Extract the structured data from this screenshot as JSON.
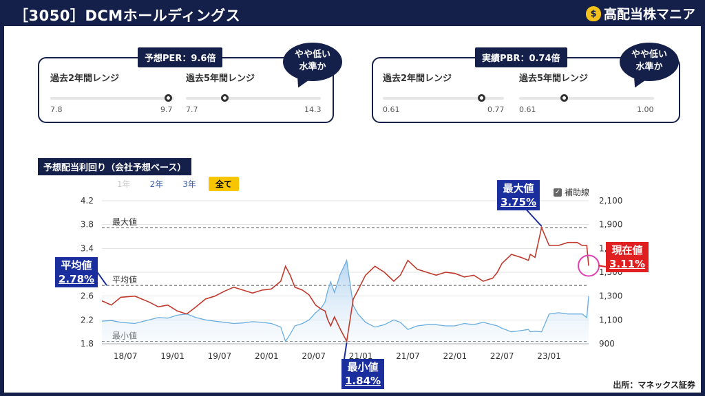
{
  "header": {
    "title": "［3050］DCMホールディングス",
    "logo_icon": "money-bag-icon",
    "logo_icon_glyph": "$",
    "logo_text": "高配当株マニア"
  },
  "per_panel": {
    "title": "予想PER：9.6倍",
    "bubble": [
      "やや低い",
      "水準か"
    ],
    "range2y": {
      "label": "過去2年間レンジ",
      "min": "7.8",
      "max": "9.7",
      "value": 9.6
    },
    "range5y": {
      "label": "過去5年間レンジ",
      "min": "7.7",
      "max": "14.3",
      "value": 9.6
    }
  },
  "pbr_panel": {
    "title": "実績PBR：0.74倍",
    "bubble": [
      "やや低い",
      "水準か"
    ],
    "range2y": {
      "label": "過去2年間レンジ",
      "min": "0.61",
      "max": "0.77",
      "value": 0.74
    },
    "range5y": {
      "label": "過去5年間レンジ",
      "min": "0.61",
      "max": "1.00",
      "value": 0.74
    }
  },
  "chart_title": "予想配当利回り（会社予想ベース）",
  "range_buttons": [
    {
      "label": "1年",
      "state": "disabled"
    },
    {
      "label": "2年",
      "state": "normal"
    },
    {
      "label": "3年",
      "state": "normal"
    },
    {
      "label": "全て",
      "state": "selected"
    }
  ],
  "aux_lines": {
    "label": "補助線",
    "checked": true,
    "check_glyph": "✓"
  },
  "callouts": {
    "max": {
      "label": "最大値",
      "value": "3.75%"
    },
    "min": {
      "label": "最小値",
      "value": "1.84%"
    },
    "avg": {
      "label": "平均値",
      "value": "2.78%"
    },
    "cur": {
      "label": "現在値",
      "value": "3.11%"
    }
  },
  "source": "出所：マネックス証券",
  "chart_data": {
    "type": "line",
    "title": "予想配当利回り（会社予想ベース）",
    "x_ticks": [
      "18/07",
      "19/01",
      "19/07",
      "20/01",
      "20/07",
      "21/01",
      "21/07",
      "22/01",
      "22/07",
      "23/01"
    ],
    "y_left": {
      "ticks": [
        "4.2",
        "3.8",
        "3.4",
        "3.0",
        "2.6",
        "2.2",
        "1.8"
      ],
      "min": 1.8,
      "max": 4.2
    },
    "y_right": {
      "ticks": [
        "2,100",
        "1,900",
        "1,700",
        "1,500",
        "1,300",
        "1,100",
        "900"
      ],
      "min": 900,
      "max": 2100
    },
    "ref_lines": [
      {
        "label": "最大値",
        "value": 3.75
      },
      {
        "label": "平均値",
        "value": 2.78
      },
      {
        "label": "最小値",
        "value": 1.84
      }
    ],
    "x_range": [
      2018.25,
      2023.42
    ],
    "series": [
      {
        "axis": "left",
        "color": "#c0392b",
        "x": [
          2018.25,
          2018.35,
          2018.45,
          2018.6,
          2018.75,
          2018.85,
          2018.95,
          2019.05,
          2019.15,
          2019.25,
          2019.35,
          2019.45,
          2019.55,
          2019.65,
          2019.75,
          2019.85,
          2019.95,
          2020.05,
          2020.15,
          2020.2,
          2020.25,
          2020.3,
          2020.38,
          2020.45,
          2020.52,
          2020.58,
          2020.62,
          2020.65,
          2020.68,
          2020.72,
          2020.78,
          2020.85,
          2020.92,
          2020.97,
          2021.05,
          2021.15,
          2021.25,
          2021.35,
          2021.42,
          2021.5,
          2021.6,
          2021.7,
          2021.8,
          2021.9,
          2022.0,
          2022.1,
          2022.2,
          2022.3,
          2022.4,
          2022.45,
          2022.5,
          2022.6,
          2022.7,
          2022.78,
          2022.8,
          2022.85,
          2022.92,
          2023.0,
          2023.1,
          2023.2,
          2023.3,
          2023.35,
          2023.4,
          2023.42
        ],
        "y": [
          2.52,
          2.45,
          2.58,
          2.6,
          2.5,
          2.42,
          2.45,
          2.35,
          2.3,
          2.42,
          2.55,
          2.6,
          2.68,
          2.75,
          2.7,
          2.65,
          2.7,
          2.72,
          2.85,
          3.1,
          2.95,
          2.75,
          2.7,
          2.62,
          2.45,
          2.38,
          2.35,
          2.2,
          2.1,
          2.25,
          2.05,
          1.84,
          2.55,
          2.7,
          2.95,
          3.1,
          3.0,
          2.85,
          2.95,
          3.2,
          3.05,
          3.0,
          2.95,
          3.0,
          2.98,
          2.92,
          2.95,
          2.85,
          2.9,
          3.0,
          3.15,
          3.3,
          3.25,
          3.2,
          3.3,
          3.25,
          3.75,
          3.45,
          3.45,
          3.5,
          3.5,
          3.45,
          3.45,
          3.11
        ]
      },
      {
        "axis": "right",
        "color": "#6aaee0",
        "x": [
          2018.25,
          2018.35,
          2018.45,
          2018.6,
          2018.75,
          2018.85,
          2018.95,
          2019.05,
          2019.15,
          2019.25,
          2019.35,
          2019.45,
          2019.55,
          2019.65,
          2019.75,
          2019.85,
          2019.95,
          2020.05,
          2020.15,
          2020.2,
          2020.25,
          2020.3,
          2020.38,
          2020.45,
          2020.52,
          2020.58,
          2020.62,
          2020.65,
          2020.68,
          2020.72,
          2020.78,
          2020.85,
          2020.92,
          2020.97,
          2021.05,
          2021.15,
          2021.25,
          2021.35,
          2021.42,
          2021.5,
          2021.6,
          2021.7,
          2021.8,
          2021.9,
          2022.0,
          2022.1,
          2022.2,
          2022.3,
          2022.4,
          2022.45,
          2022.5,
          2022.6,
          2022.7,
          2022.78,
          2022.8,
          2022.85,
          2022.92,
          2023.0,
          2023.1,
          2023.2,
          2023.3,
          2023.35,
          2023.4,
          2023.42
        ],
        "y": [
          1090,
          1095,
          1080,
          1070,
          1100,
          1120,
          1115,
          1140,
          1150,
          1120,
          1100,
          1090,
          1080,
          1070,
          1075,
          1085,
          1080,
          1070,
          1040,
          920,
          980,
          1050,
          1070,
          1100,
          1160,
          1200,
          1250,
          1350,
          1420,
          1330,
          1480,
          1600,
          1220,
          1150,
          1080,
          1040,
          1060,
          1100,
          1080,
          1020,
          1050,
          1060,
          1060,
          1050,
          1050,
          1070,
          1060,
          1080,
          1060,
          1050,
          1030,
          1000,
          1010,
          1020,
          1000,
          1005,
          1000,
          1150,
          1160,
          1150,
          1150,
          1150,
          1120,
          1300
        ]
      }
    ]
  }
}
